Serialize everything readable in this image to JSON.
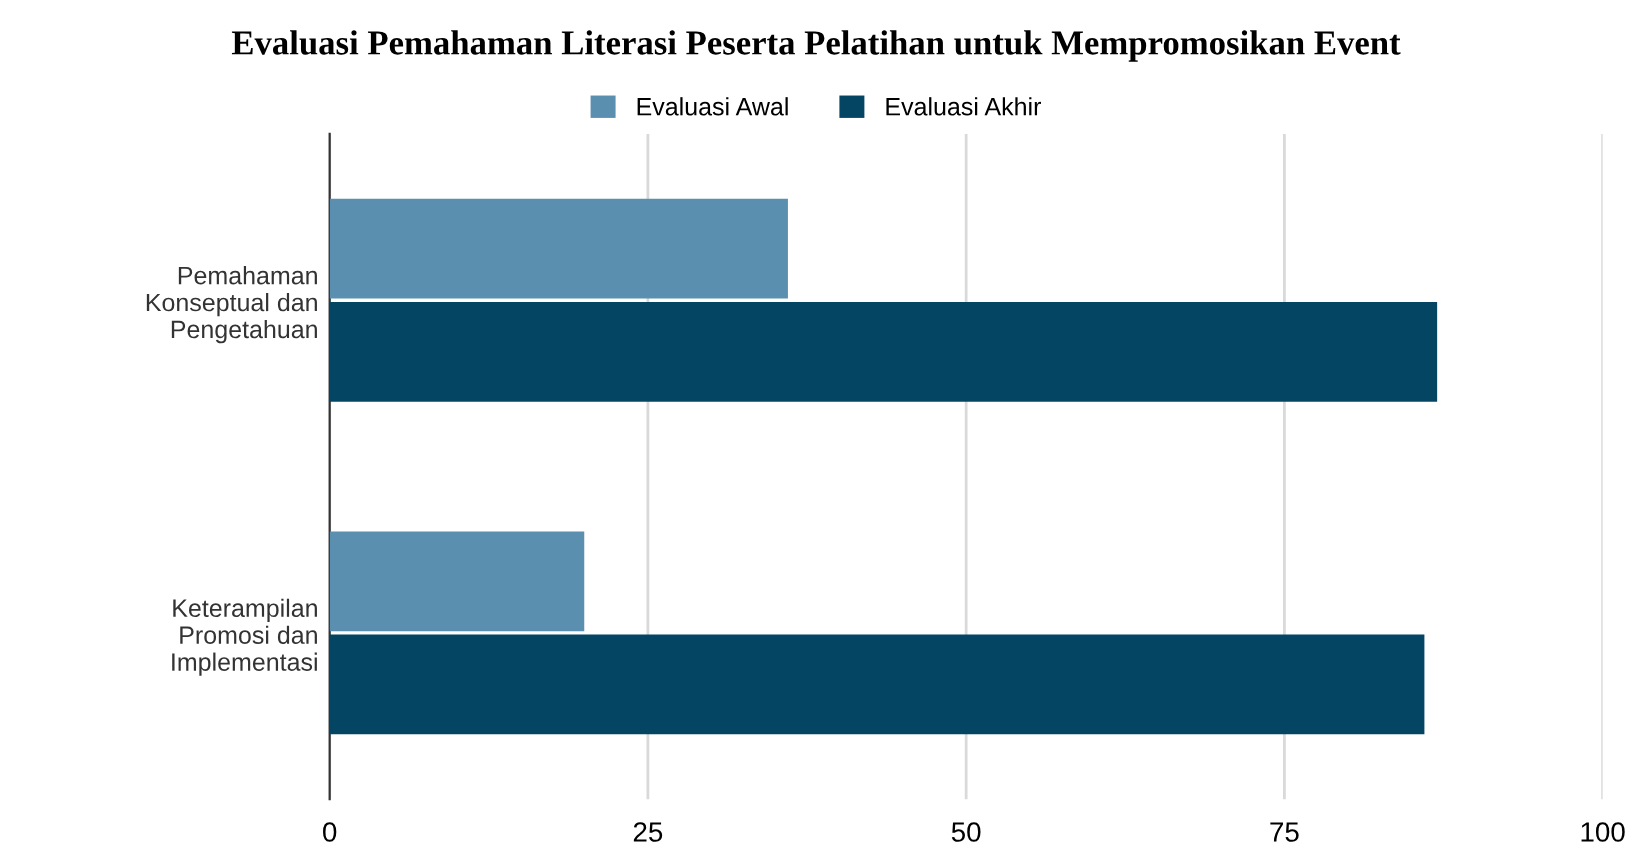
{
  "chart_data": {
    "type": "bar",
    "orientation": "horizontal",
    "title": "Evaluasi Pemahaman Literasi Peserta Pelatihan untuk Mempromosikan Event",
    "categories": [
      "Pemahaman\nKonseptual dan\nPengetahuan",
      "Keterampilan\nPromosi dan\nImplementasi"
    ],
    "series": [
      {
        "name": "Evaluasi Awal",
        "color": "#5b8fb0",
        "values": [
          36,
          20
        ]
      },
      {
        "name": "Evaluasi Akhir",
        "color": "#034563",
        "values": [
          87,
          86
        ]
      }
    ],
    "xlim": [
      0,
      100
    ],
    "xticks": [
      0,
      25,
      50,
      75,
      100
    ],
    "grid": "x",
    "legend": "top"
  }
}
